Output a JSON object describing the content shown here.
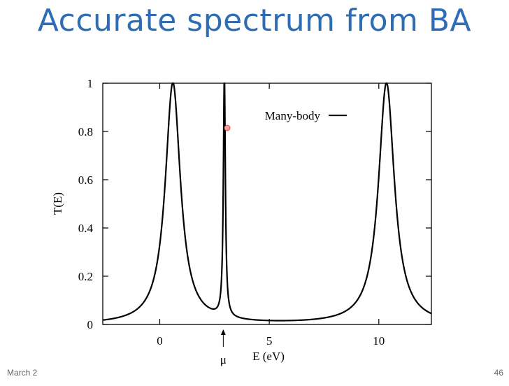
{
  "slide": {
    "title": "Accurate spectrum from BA",
    "footer_left": "March 2",
    "page_number": "46"
  },
  "chart_data": {
    "type": "line",
    "xlabel": "E (eV)",
    "ylabel": "T(E)",
    "xlim": [
      -2.6,
      12.4
    ],
    "ylim": [
      0,
      1
    ],
    "x_ticks": [
      0,
      5,
      10
    ],
    "y_ticks": [
      0,
      0.2,
      0.4,
      0.6,
      0.8,
      1
    ],
    "y_tick_labels": [
      "0",
      "0.2",
      "0.4",
      "0.6",
      "0.8",
      "1"
    ],
    "legend_position": "top-right",
    "grid": false,
    "annotations": [
      {
        "label": "μ",
        "x": 2.9,
        "style": "arrow-up"
      }
    ],
    "series": [
      {
        "name": "Many-body",
        "color": "#000000",
        "peaks": [
          {
            "center": 0.6,
            "width": 0.42
          },
          {
            "center": 2.95,
            "width": 0.055
          },
          {
            "center": 10.35,
            "width": 0.44
          }
        ],
        "x_range": [
          -2.6,
          12.4
        ]
      }
    ]
  }
}
